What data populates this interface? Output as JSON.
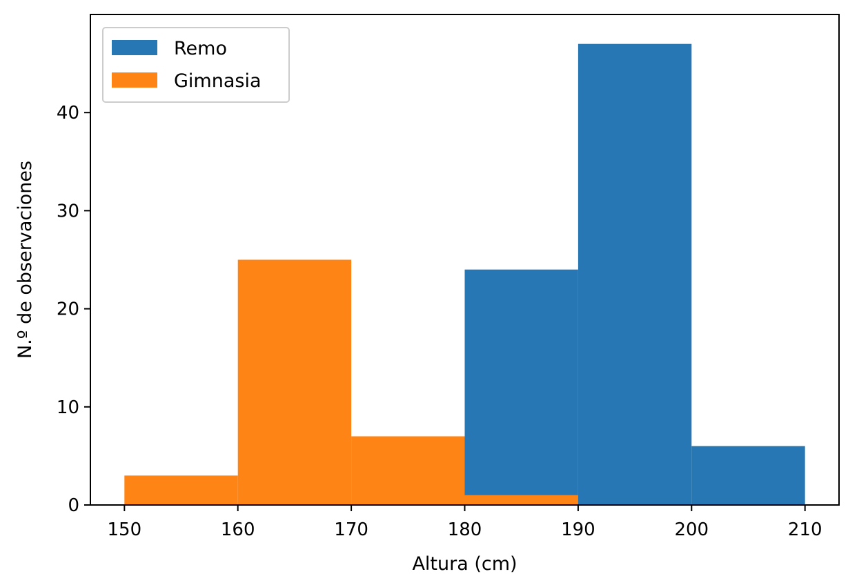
{
  "chart_data": {
    "type": "bar",
    "title": "",
    "xlabel": "Altura (cm)",
    "ylabel": "N.º de observaciones",
    "xlim": [
      147,
      213
    ],
    "ylim": [
      0,
      50
    ],
    "xticks": [
      150,
      160,
      170,
      180,
      190,
      200,
      210
    ],
    "yticks": [
      0,
      10,
      20,
      30,
      40
    ],
    "grid": false,
    "legend_position": "top-left",
    "series": [
      {
        "name": "Remo",
        "color": "#2677b3",
        "bins": [
          {
            "x0": 180,
            "x1": 190,
            "value": 24
          },
          {
            "x0": 190,
            "x1": 200,
            "value": 47
          },
          {
            "x0": 200,
            "x1": 210,
            "value": 6
          }
        ]
      },
      {
        "name": "Gimnasia",
        "color": "#fd8415",
        "bins": [
          {
            "x0": 150,
            "x1": 160,
            "value": 3
          },
          {
            "x0": 160,
            "x1": 170,
            "value": 25
          },
          {
            "x0": 170,
            "x1": 180,
            "value": 7
          },
          {
            "x0": 180,
            "x1": 190,
            "value": 1
          }
        ]
      }
    ]
  }
}
